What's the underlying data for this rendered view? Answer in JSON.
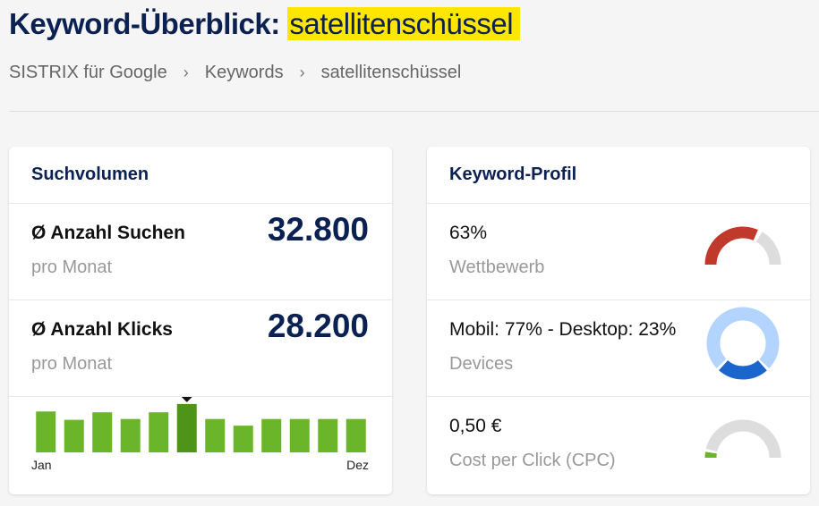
{
  "header": {
    "title_prefix": "Keyword-Überblick:",
    "keyword": "satellitenschüssel"
  },
  "breadcrumb": {
    "items": [
      "SISTRIX für Google",
      "Keywords",
      "satellitenschüssel"
    ],
    "separator": "›"
  },
  "volume_card": {
    "title": "Suchvolumen",
    "searches": {
      "label": "Ø Anzahl Suchen",
      "sub": "pro Monat",
      "value": "32.800"
    },
    "clicks": {
      "label": "Ø Anzahl Klicks",
      "sub": "pro Monat",
      "value": "28.200"
    },
    "chart_data": {
      "type": "bar",
      "categories": [
        "",
        "",
        "",
        "",
        "",
        "",
        "",
        "",
        "",
        "",
        "",
        ""
      ],
      "values": [
        49,
        39,
        48,
        40,
        48,
        58,
        40,
        32,
        40,
        40,
        40,
        40
      ],
      "highlight_index": 5,
      "start_label": "Jan",
      "end_label": "Dez",
      "ylim": [
        0,
        60
      ],
      "colors": {
        "bar": "#6ab52a",
        "highlight": "#4e9418",
        "marker": "#111111"
      }
    }
  },
  "profile_card": {
    "title": "Keyword-Profil",
    "competition": {
      "value": "63%",
      "label": "Wettbewerb",
      "fraction": 0.63,
      "color": "#c0392b"
    },
    "devices": {
      "value": "Mobil: 77% - Desktop: 23%",
      "label": "Devices",
      "mobile_fraction": 0.77,
      "mobile_color": "#b3d4ff",
      "desktop_color": "#1a66cc"
    },
    "cpc": {
      "value": "0,50 €",
      "label": "Cost per Click (CPC)",
      "fraction": 0.05,
      "color": "#6ab52a"
    }
  }
}
